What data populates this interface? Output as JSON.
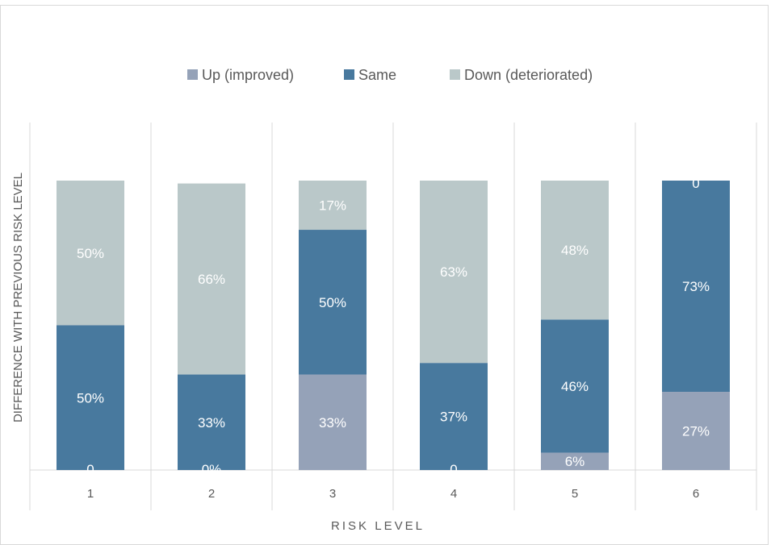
{
  "chart_data": {
    "type": "bar",
    "stacked": true,
    "title": "",
    "categories": [
      "1",
      "2",
      "3",
      "4",
      "5",
      "6"
    ],
    "series": [
      {
        "name": "Up (improved)",
        "color": "#95a2b8",
        "values": [
          0,
          0,
          33,
          0,
          6,
          27
        ],
        "labels": [
          "0",
          "0%",
          "33%",
          "0",
          "6%",
          "27%"
        ]
      },
      {
        "name": "Same",
        "color": "#48799e",
        "values": [
          50,
          33,
          50,
          37,
          46,
          73
        ],
        "labels": [
          "50%",
          "33%",
          "50%",
          "37%",
          "46%",
          "73%"
        ]
      },
      {
        "name": "Down (deteriorated)",
        "color": "#bac8c9",
        "values": [
          50,
          66,
          17,
          63,
          48,
          0
        ],
        "labels": [
          "50%",
          "66%",
          "17%",
          "63%",
          "48%",
          "0"
        ]
      }
    ],
    "xlabel": "RISK LEVEL",
    "ylabel": "DIFFERENCE WITH PREVIOUS RISK LEVEL",
    "ylim": [
      0,
      100
    ],
    "legend_position": "top",
    "grid": "vertical"
  }
}
